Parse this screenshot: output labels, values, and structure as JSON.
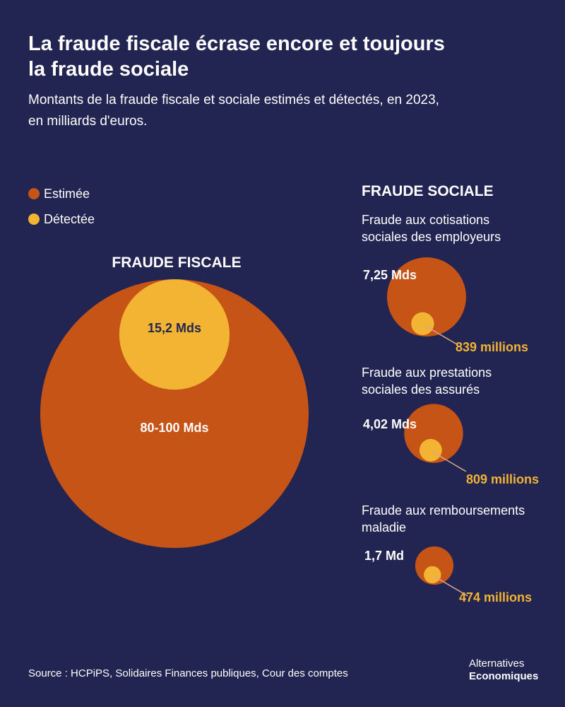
{
  "title_line1": "La fraude fiscale écrase encore et toujours",
  "title_line2": "la fraude sociale",
  "subtitle_line1": "Montants de la fraude fiscale et sociale estimés et détectés, en 2023,",
  "subtitle_line2": "en milliards d'euros.",
  "colors": {
    "background": "#222452",
    "estimated": "#c65416",
    "detected": "#f3b433"
  },
  "legend": [
    {
      "label": "Estimée",
      "color": "#c65416"
    },
    {
      "label": "Détectée",
      "color": "#f3b433"
    }
  ],
  "source": "Source : HCPiPS, Solidaires Finances publiques, Cour des comptes",
  "brand": {
    "line1": "Alternatives",
    "line2": "Economiques"
  },
  "chart_data": {
    "type": "bubble",
    "unit": "milliards d'euros",
    "groups": [
      {
        "heading": "FRAUDE FISCALE",
        "items": [
          {
            "category_lines": [],
            "estimated_value": 90,
            "estimated_label": "80-100 Mds",
            "detected_value": 15.2,
            "detected_label": "15,2 Mds"
          }
        ]
      },
      {
        "heading": "FRAUDE SOCIALE",
        "items": [
          {
            "category_lines": [
              "Fraude aux cotisations",
              "sociales des employeurs"
            ],
            "estimated_value": 7.25,
            "estimated_label": "7,25 Mds",
            "detected_value": 0.839,
            "detected_label": "839 millions"
          },
          {
            "category_lines": [
              "Fraude aux prestations",
              "sociales des assurés"
            ],
            "estimated_value": 4.02,
            "estimated_label": "4,02 Mds",
            "detected_value": 0.809,
            "detected_label": "809 millions"
          },
          {
            "category_lines": [
              "Fraude aux remboursements",
              "maladie"
            ],
            "estimated_value": 1.7,
            "estimated_label": "1,7 Md",
            "detected_value": 0.474,
            "detected_label": "474 millions"
          }
        ]
      }
    ]
  }
}
